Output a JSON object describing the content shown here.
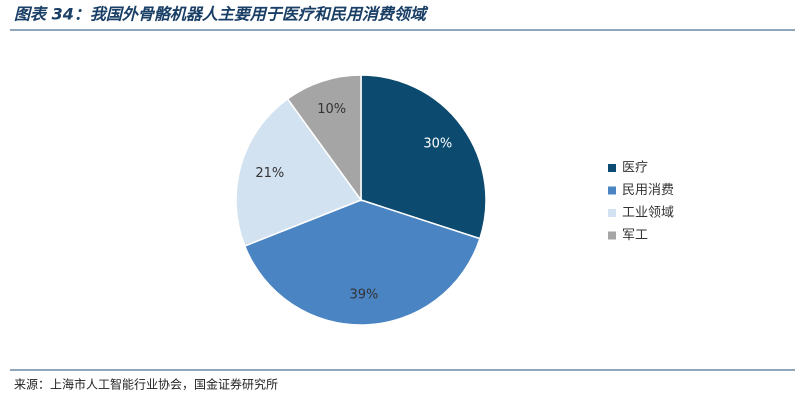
{
  "chart_data": {
    "type": "pie",
    "title": "图表 34：我国外骨骼机器人主要用于医疗和民用消费领域",
    "categories": [
      "医疗",
      "民用消费",
      "工业领域",
      "军工"
    ],
    "values": [
      30,
      39,
      21,
      10
    ],
    "value_labels": [
      "30%",
      "39%",
      "21%",
      "10%"
    ],
    "colors": [
      "#0c4a70",
      "#4a84c3",
      "#d2e2f1",
      "#a5a5a5"
    ],
    "legend": "right"
  },
  "source": "来源：上海市人工智能行业协会，国金证券研究所"
}
